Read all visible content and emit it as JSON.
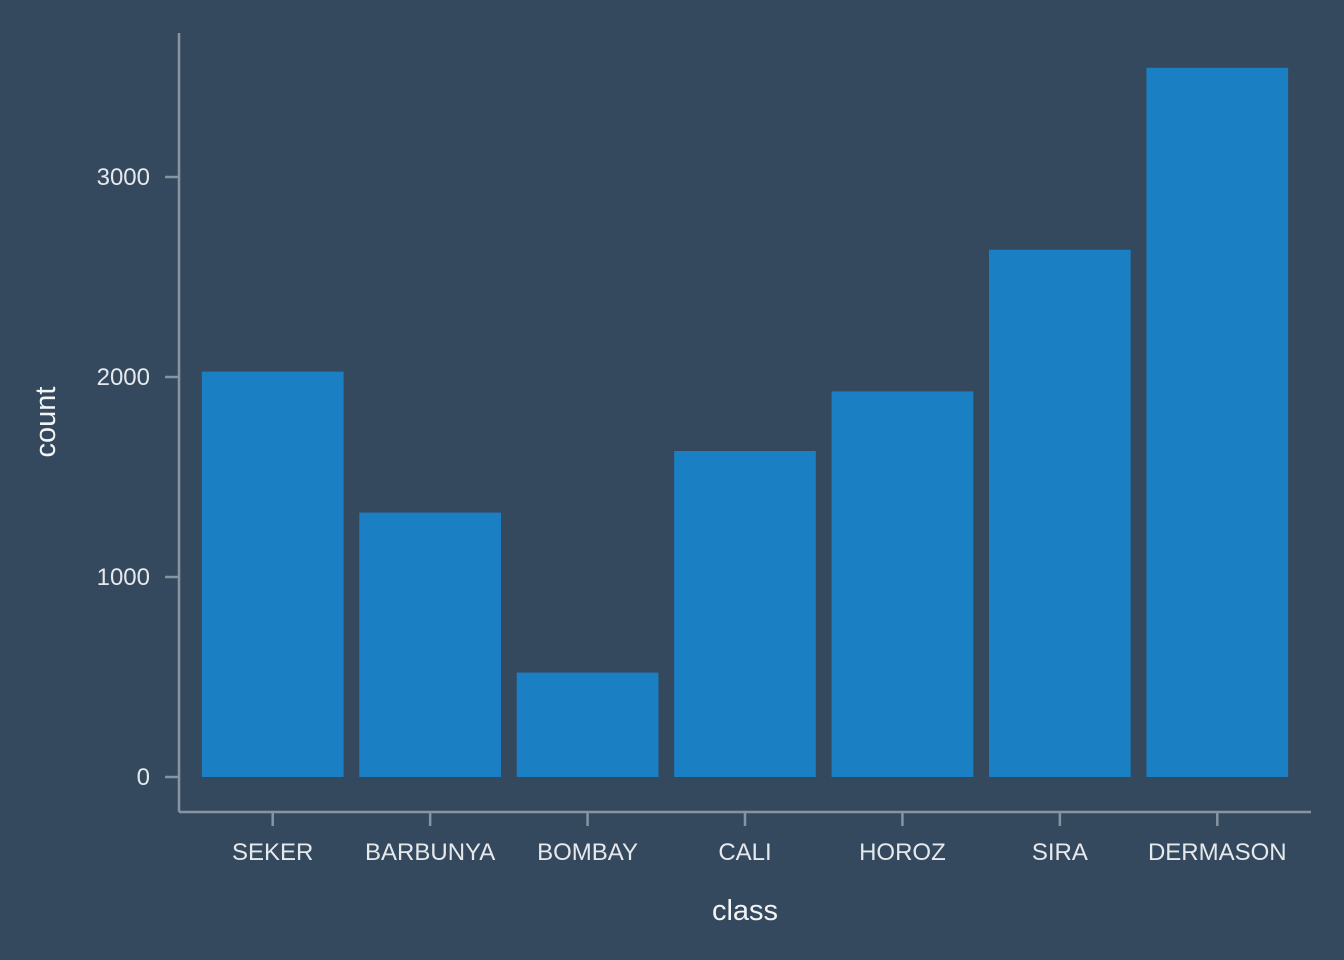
{
  "chart_data": {
    "type": "bar",
    "categories": [
      "SEKER",
      "BARBUNYA",
      "BOMBAY",
      "CALI",
      "HOROZ",
      "SIRA",
      "DERMASON"
    ],
    "values": [
      2027,
      1322,
      522,
      1630,
      1928,
      2636,
      3546
    ],
    "xlabel": "class",
    "ylabel": "count",
    "ylim": [
      0,
      3900
    ],
    "yticks": [
      0,
      1000,
      2000,
      3000
    ],
    "grid": false,
    "legend": "none",
    "colors": {
      "background": "#34495e",
      "bar": "#1b7fc4",
      "axis": "#8795a3",
      "text": "#e6e9ec"
    }
  }
}
